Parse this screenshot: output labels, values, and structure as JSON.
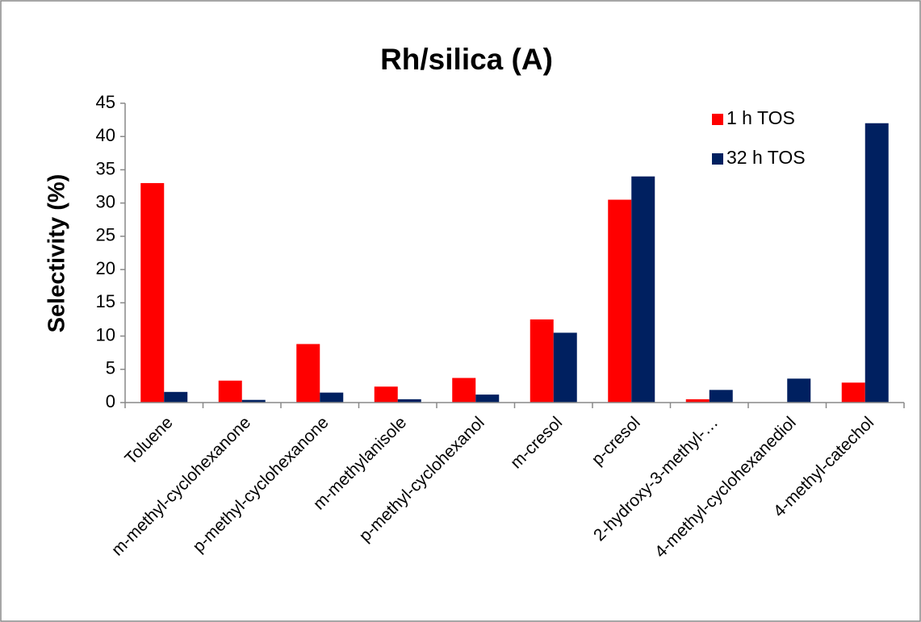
{
  "chart_data": {
    "type": "bar",
    "title": "Rh/silica (A)",
    "y_label": "Selectivity (%)",
    "categories": [
      "Toluene",
      "m-methyl-cyclohexanone",
      "p-methyl-cyclohexanone",
      "m-methylanisole",
      "p-methyl-cyclohexanol",
      "m-cresol",
      "p-cresol",
      "2-hydroxy-3-methyl-…",
      "4-methyl-cyclohexanediol",
      "4-methyl-catechol"
    ],
    "series": [
      {
        "name": "1 h TOS",
        "color": "#ff0000",
        "values": [
          33,
          3.3,
          8.8,
          2.4,
          3.7,
          12.5,
          30.5,
          0.5,
          0,
          3.0
        ]
      },
      {
        "name": "32 h TOS",
        "color": "#002060",
        "values": [
          1.6,
          0.4,
          1.5,
          0.5,
          1.2,
          10.5,
          34,
          1.9,
          3.6,
          42
        ]
      }
    ],
    "ylim": [
      0,
      45
    ],
    "yticks": [
      0,
      5,
      10,
      15,
      20,
      25,
      30,
      35,
      40,
      45
    ],
    "grid": false,
    "legend": "upper right"
  }
}
